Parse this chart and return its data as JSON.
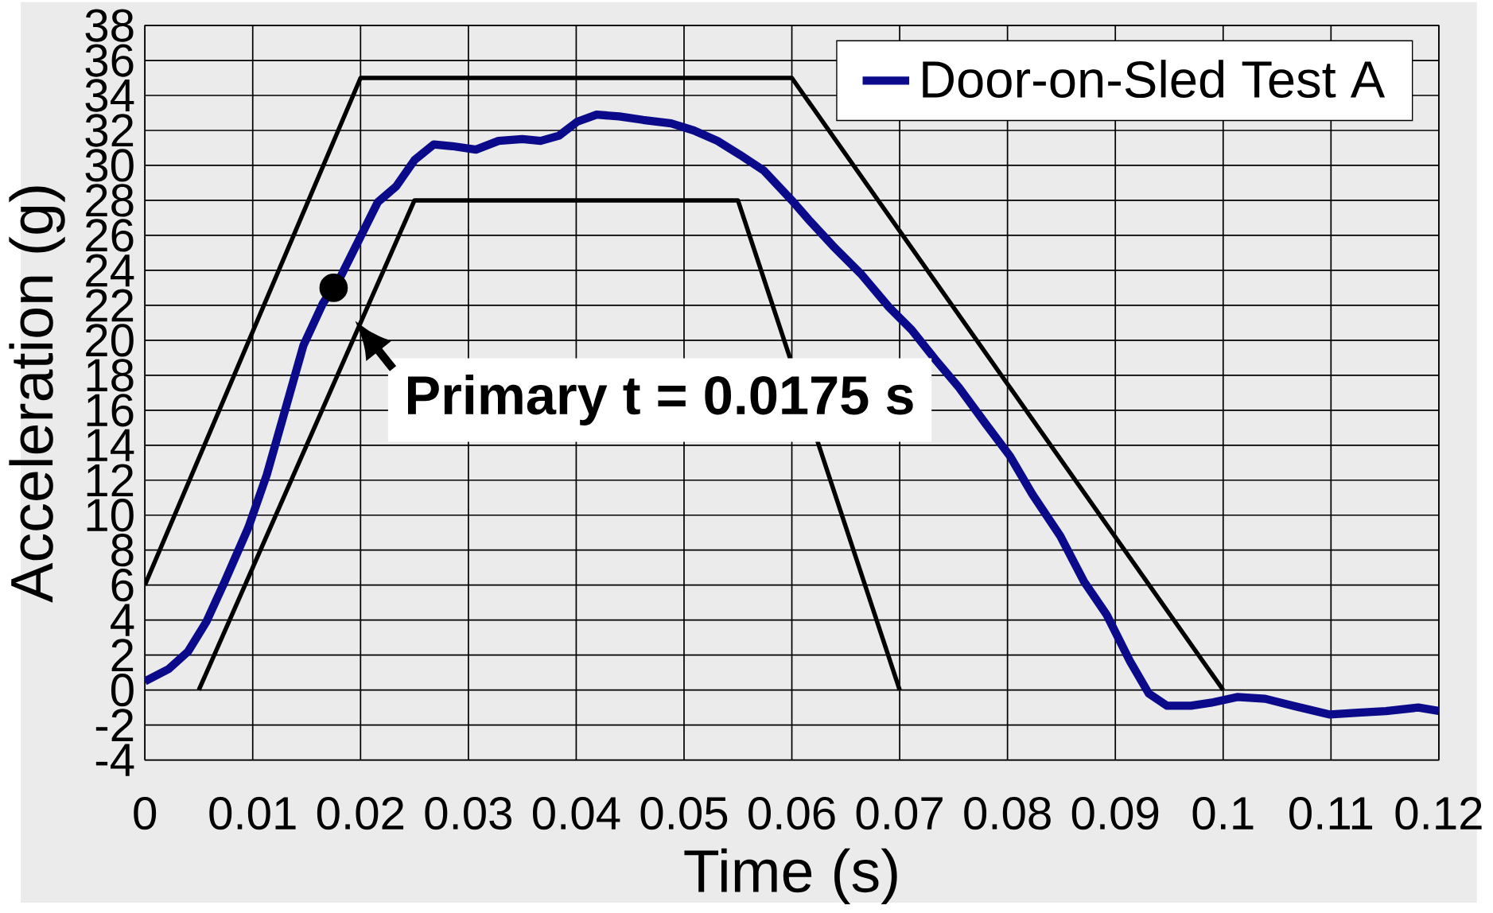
{
  "chart_data": {
    "type": "line",
    "xlabel": "Time (s)",
    "ylabel": "Acceleration (g)",
    "xlim": [
      0,
      0.12
    ],
    "ylim": [
      -4,
      38
    ],
    "xticks": [
      0,
      0.01,
      0.02,
      0.03,
      0.04,
      0.05,
      0.06,
      0.07,
      0.08,
      0.09,
      0.1,
      0.11,
      0.12
    ],
    "yticks": [
      -4,
      -2,
      0,
      2,
      4,
      6,
      8,
      10,
      12,
      14,
      16,
      18,
      20,
      22,
      24,
      26,
      28,
      30,
      32,
      34,
      36,
      38
    ],
    "grid": true,
    "legend": "top right",
    "marker": "none",
    "line_style": "solid",
    "series": [
      {
        "name": "Door-on-Sled Test A",
        "color": "#0a0a8a",
        "x": [
          0,
          0.0022,
          0.004,
          0.0057,
          0.0074,
          0.0096,
          0.0113,
          0.013,
          0.0147,
          0.0165,
          0.0182,
          0.0199,
          0.0216,
          0.0233,
          0.025,
          0.0268,
          0.0285,
          0.0307,
          0.0328,
          0.035,
          0.0367,
          0.0384,
          0.0401,
          0.0419,
          0.044,
          0.0462,
          0.0488,
          0.0509,
          0.0531,
          0.0552,
          0.0574,
          0.06,
          0.0617,
          0.0638,
          0.0664,
          0.069,
          0.0711,
          0.0733,
          0.0755,
          0.078,
          0.0802,
          0.0823,
          0.0849,
          0.0871,
          0.0892,
          0.0914,
          0.0931,
          0.0948,
          0.097,
          0.0991,
          0.1013,
          0.1039,
          0.1065,
          0.1099,
          0.1125,
          0.1151,
          0.1181,
          0.12
        ],
        "values": [
          0.5,
          1.2,
          2.2,
          3.9,
          6.2,
          9.3,
          12.3,
          16.0,
          19.7,
          22.1,
          23.7,
          25.8,
          27.9,
          28.8,
          30.3,
          31.2,
          31.1,
          30.9,
          31.4,
          31.5,
          31.4,
          31.7,
          32.5,
          32.9,
          32.8,
          32.6,
          32.4,
          32.0,
          31.4,
          30.6,
          29.7,
          28.0,
          26.8,
          25.4,
          23.8,
          21.9,
          20.6,
          18.9,
          17.3,
          15.2,
          13.4,
          11.2,
          8.8,
          6.2,
          4.3,
          1.6,
          -0.2,
          -0.9,
          -0.9,
          -0.7,
          -0.4,
          -0.5,
          -0.9,
          -1.4,
          -1.3,
          -1.2,
          -1.0,
          -1.2
        ]
      },
      {
        "color": "#000000",
        "x": [
          0,
          0.02,
          0.06,
          0.1
        ],
        "values": [
          6,
          35,
          35,
          0
        ]
      },
      {
        "color": "#000000",
        "x": [
          0.005,
          0.025,
          0.055,
          0.07
        ],
        "values": [
          0,
          28,
          28,
          0
        ]
      },
      {
        "type": "scatter",
        "color": "#000000",
        "x": [
          0.0175
        ],
        "values": [
          23
        ]
      }
    ],
    "annotations": [
      {
        "text": "Primary t = 0.0175 s",
        "x": 0.0175,
        "y": 23
      }
    ]
  }
}
